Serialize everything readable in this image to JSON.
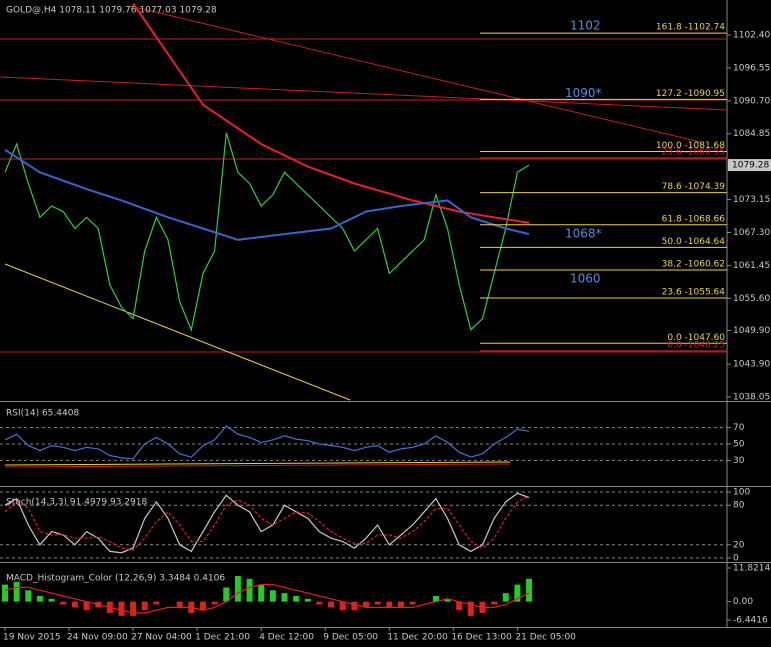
{
  "chart_data": [
    {
      "type": "line",
      "title": "GOLD@,H4  1078.11 1079.76 1077.03 1079.28",
      "xlim": [
        0,
        62
      ],
      "ylim": [
        1037.52,
        1108.62
      ],
      "yticks": [
        {
          "value": 1102.4,
          "label": "1102.40"
        },
        1096.55,
        {
          "value": 1090.7,
          "label": "1090.70"
        },
        1084.85,
        1073.15,
        {
          "value": 1067.3,
          "label": "1067.30"
        },
        1061.45,
        {
          "value": 1055.6,
          "label": "1055.60"
        },
        {
          "value": 1049.9,
          "label": "1049.90"
        },
        {
          "value": 1043.9,
          "label": "1043.90"
        },
        1038.05
      ],
      "last_price": 1079.28,
      "series": [
        {
          "color": "#2ecc40",
          "values": [
            1078,
            1083,
            1076,
            1070,
            1072,
            1071,
            1068,
            1070,
            1068,
            1058,
            1054,
            1052,
            1064,
            1070,
            1066,
            1055,
            1050,
            1060,
            1064,
            1085,
            1078,
            1076,
            1072,
            1074,
            1078,
            1076,
            1074,
            1072,
            1070,
            1068,
            1064,
            1066,
            1068,
            1060,
            1062,
            1064,
            1066,
            1074,
            1068,
            1058,
            1050,
            1052,
            1060,
            1068,
            1078,
            1079.28
          ]
        },
        {
          "color": "#e8202a",
          "x": [
            11,
            17,
            22,
            26,
            30,
            35,
            39,
            42,
            45
          ],
          "values": [
            1108,
            1090,
            1083,
            1079,
            1076,
            1073,
            1071,
            1070,
            1069
          ]
        },
        {
          "color": "#3a64c8",
          "x": [
            0,
            3,
            7,
            10,
            14,
            17,
            20,
            24,
            28,
            31,
            34,
            38,
            40,
            43,
            45
          ],
          "values": [
            1082,
            1078,
            1075,
            1073,
            1070,
            1068,
            1066,
            1067,
            1068,
            1071,
            1072,
            1073,
            1070,
            1068,
            1067
          ]
        }
      ],
      "fibs": [
        {
          "color": "#e8d24a",
          "levels": [
            {
              "value": 1102.74,
              "label": "161.8 -1102.74"
            },
            {
              "value": 1090.95,
              "label": "127.2 -1090.95"
            },
            {
              "value": 1081.68,
              "label": "100.0 -1081.68"
            },
            {
              "value": 1074.39,
              "label": "78.6 -1074.39"
            },
            {
              "value": 1068.66,
              "label": "61.8 -1068.66"
            },
            {
              "value": 1064.64,
              "label": "50.0 -1064.64"
            },
            {
              "value": 1060.62,
              "label": "38.2 -1060.62"
            },
            {
              "value": 1055.64,
              "label": "23.6 -1055.64"
            },
            {
              "value": 1047.6,
              "label": "0.0 -1047.60"
            }
          ]
        },
        {
          "color": "#d02020",
          "levels": [
            {
              "value": 1080.55,
              "label": "23.6 -1080.55"
            },
            {
              "value": 1046.25,
              "label": "0.0 -1046.25"
            }
          ]
        }
      ],
      "annotation_color": "#5b8bd8",
      "annotations": [
        {
          "value": 1104,
          "label": "1102"
        },
        {
          "value": 1092,
          "label": "1090*"
        },
        {
          "value": 1067,
          "label": "1068*"
        },
        {
          "value": 1059,
          "label": "1060"
        }
      ]
    },
    {
      "type": "line",
      "title": "RSI(14) 65.4408",
      "xlim": [
        0,
        62
      ],
      "ylim": [
        0,
        100
      ],
      "yticks": [
        70,
        50,
        30
      ],
      "grid": true,
      "series": [
        {
          "color": "#4a6fd0",
          "values": [
            55,
            62,
            48,
            42,
            48,
            46,
            42,
            46,
            44,
            36,
            33,
            32,
            50,
            58,
            50,
            38,
            34,
            48,
            55,
            72,
            62,
            58,
            52,
            55,
            60,
            56,
            54,
            50,
            48,
            46,
            42,
            46,
            48,
            40,
            44,
            46,
            50,
            60,
            52,
            40,
            34,
            38,
            50,
            58,
            68,
            65.4408
          ]
        }
      ]
    },
    {
      "type": "line",
      "title": "Stoch(14,3,3) 91.4979 93.2918",
      "xlim": [
        0,
        62
      ],
      "ylim": [
        0,
        100
      ],
      "yticks": [
        100,
        80,
        20,
        0
      ],
      "grid": true,
      "series": [
        {
          "color": "#c8c8c8",
          "values": [
            80,
            90,
            50,
            20,
            40,
            35,
            20,
            40,
            30,
            10,
            8,
            15,
            60,
            85,
            60,
            20,
            10,
            40,
            70,
            95,
            80,
            70,
            40,
            50,
            80,
            70,
            60,
            40,
            30,
            25,
            15,
            30,
            50,
            20,
            35,
            50,
            70,
            90,
            60,
            20,
            10,
            20,
            60,
            85,
            98,
            91.4979
          ]
        },
        {
          "color": "#e02020",
          "style": "dashed",
          "values": [
            70,
            85,
            75,
            40,
            35,
            35,
            30,
            30,
            32,
            25,
            15,
            12,
            30,
            55,
            70,
            50,
            25,
            25,
            50,
            80,
            88,
            80,
            60,
            50,
            60,
            70,
            68,
            55,
            40,
            30,
            22,
            22,
            35,
            35,
            30,
            40,
            55,
            75,
            75,
            50,
            25,
            15,
            30,
            60,
            85,
            93.2918
          ]
        }
      ]
    },
    {
      "type": "bar",
      "title": "MACD_Histogram_Color (12,26,9) 3.3484 0.4106",
      "xlim": [
        0,
        62
      ],
      "ylim": [
        -6.4416,
        11.8214
      ],
      "yticks": [
        11.8214,
        {
          "value": 0,
          "label": "0.00"
        },
        -6.4416
      ],
      "positive_color": "#22cc22",
      "negative_color": "#e02020",
      "values": [
        6,
        7,
        4,
        2,
        1,
        -1,
        -2,
        -3,
        -2,
        -4,
        -5,
        -5,
        -3,
        -1,
        0,
        -2,
        -4,
        -3,
        -1,
        5,
        9,
        8,
        6,
        4,
        3,
        2,
        1,
        -1,
        -2,
        -3,
        -3,
        -2,
        -1,
        -2,
        -2,
        -1,
        0,
        2,
        1,
        -3,
        -5,
        -4,
        -1,
        3,
        6,
        8
      ],
      "series": [
        {
          "color": "#e02020",
          "values": [
            4,
            5,
            5,
            4,
            3,
            2,
            1,
            0,
            -1,
            -2,
            -3,
            -4,
            -4,
            -3,
            -2,
            -2,
            -2,
            -3,
            -2,
            0,
            3,
            5,
            6,
            6,
            5,
            4,
            3,
            2,
            1,
            0,
            -1,
            -2,
            -2,
            -2,
            -2,
            -2,
            -1,
            0,
            1,
            0,
            -1,
            -2,
            -2,
            -1,
            1,
            3
          ]
        }
      ],
      "xticks": [
        {
          "value": 0,
          "label": "19 Nov 2015"
        },
        {
          "value": 5.5,
          "label": "24 Nov 09:00"
        },
        {
          "value": 11,
          "label": "27 Nov 04:00"
        },
        {
          "value": 16.5,
          "label": "1 Dec 21:00"
        },
        {
          "value": 22,
          "label": "4 Dec 12:00"
        },
        {
          "value": 27.5,
          "label": "9 Dec 05:00"
        },
        {
          "value": 33,
          "label": "11 Dec 20:00"
        },
        {
          "value": 38.5,
          "label": "16 Dec 13:00"
        },
        {
          "value": 44,
          "label": "21 Dec 05:00"
        }
      ]
    }
  ]
}
